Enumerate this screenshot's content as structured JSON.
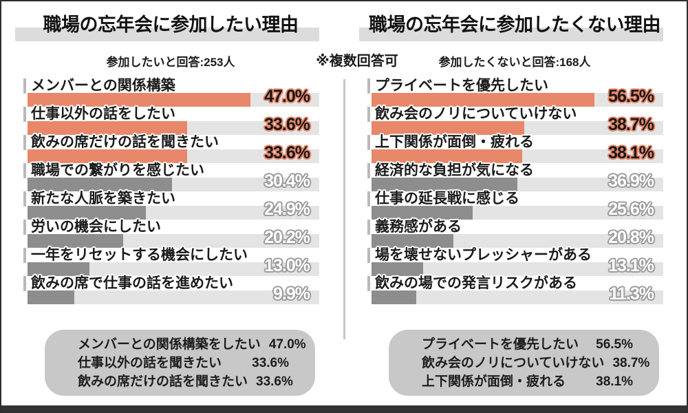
{
  "note": "※複数回答可",
  "colors": {
    "accent": "#E9876A",
    "gray_bar": "#8D8D8D",
    "track": "#E4E4E4",
    "summary_bg": "#C8C8C8",
    "title_highlight": "#DCDCDC",
    "footer": "#333333"
  },
  "chart_data": [
    {
      "type": "bar",
      "orientation": "horizontal",
      "title": "職場の忘年会に参加したい理由",
      "subtitle": "参加したいと回答:253人",
      "unit": "%",
      "grid": false,
      "highlighted_count": 3,
      "categories": [
        "メンバーとの関係構築",
        "仕事以外の話をしたい",
        "飲みの席だけの話を聞きたい",
        "職場での繋がりを感じたい",
        "新たな人脈を築きたい",
        "労いの機会にしたい",
        "一年をリセットする機会にしたい",
        "飲みの席で仕事の話を進めたい"
      ],
      "values": [
        47.0,
        33.6,
        33.6,
        30.4,
        24.9,
        20.2,
        13.0,
        9.9
      ],
      "summary_rows": [
        {
          "label": "メンバーとの関係構築をしたい",
          "value": "47.0%"
        },
        {
          "label": "仕事以外の話を聞きたい",
          "value": "33.6%"
        },
        {
          "label": "飲みの席だけの話を聞きたい",
          "value": "33.6%"
        }
      ]
    },
    {
      "type": "bar",
      "orientation": "horizontal",
      "title": "職場の忘年会に参加したくない理由",
      "subtitle": "参加したくないと回答:168人",
      "unit": "%",
      "grid": false,
      "highlighted_count": 3,
      "categories": [
        "プライベートを優先したい",
        "飲み会のノリについていけない",
        "上下関係が面倒・疲れる",
        "経済的な負担が気になる",
        "仕事の延長戦に感じる",
        "義務感がある",
        "場を壊せないプレッシャーがある",
        "飲みの場での発言リスクがある"
      ],
      "values": [
        56.5,
        38.7,
        38.1,
        36.9,
        25.6,
        20.8,
        13.1,
        11.3
      ],
      "summary_rows": [
        {
          "label": "プライベートを優先したい",
          "value": "56.5%"
        },
        {
          "label": "飲み会のノリについていけない",
          "value": "38.7%"
        },
        {
          "label": "上下関係が面倒・疲れる",
          "value": "38.1%"
        }
      ]
    }
  ]
}
